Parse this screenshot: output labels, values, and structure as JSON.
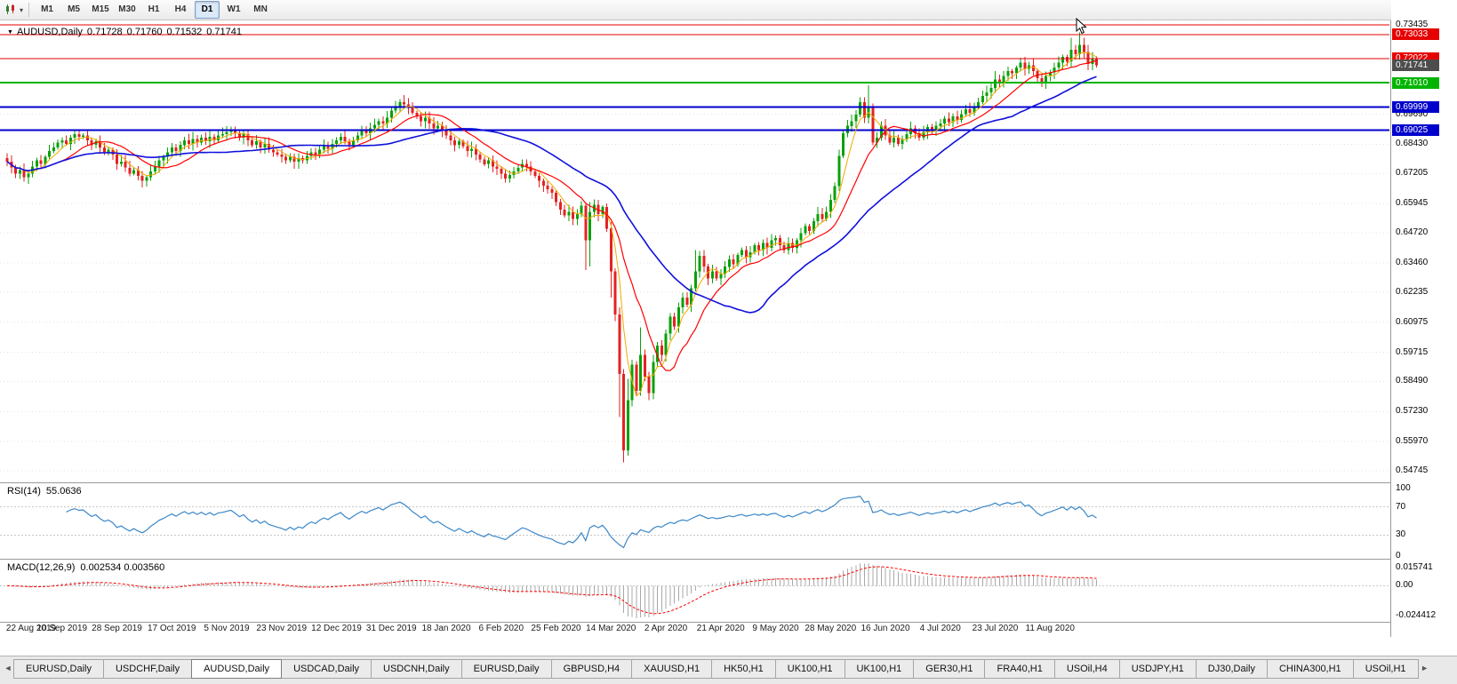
{
  "toolbar": {
    "timeframes": [
      {
        "label": "M1",
        "active": false
      },
      {
        "label": "M5",
        "active": false
      },
      {
        "label": "M15",
        "active": false
      },
      {
        "label": "M30",
        "active": false
      },
      {
        "label": "H1",
        "active": false
      },
      {
        "label": "H4",
        "active": false
      },
      {
        "label": "D1",
        "active": true
      },
      {
        "label": "W1",
        "active": false
      },
      {
        "label": "MN",
        "active": false
      }
    ]
  },
  "header": {
    "symbol": "AUDUSD,Daily",
    "open": "0.71728",
    "high": "0.71760",
    "low": "0.71532",
    "close": "0.71741"
  },
  "rsi_panel": {
    "name": "RSI(14)",
    "value": "55.0636",
    "scale": [
      {
        "label": "100",
        "v": 100
      },
      {
        "label": "70",
        "v": 70
      },
      {
        "label": "30",
        "v": 30
      },
      {
        "label": "0",
        "v": 0
      }
    ]
  },
  "macd_panel": {
    "name": "MACD(12,26,9)",
    "value": "0.002534 0.003560",
    "scale_top": "0.015741",
    "scale_zero": "0.00",
    "scale_bottom": "-0.024412"
  },
  "tabs": {
    "items": [
      {
        "label": "EURUSD,Daily",
        "active": false
      },
      {
        "label": "USDCHF,Daily",
        "active": false
      },
      {
        "label": "AUDUSD,Daily",
        "active": true
      },
      {
        "label": "USDCAD,Daily",
        "active": false
      },
      {
        "label": "USDCNH,Daily",
        "active": false
      },
      {
        "label": "EURUSD,Daily",
        "active": false
      },
      {
        "label": "GBPUSD,H4",
        "active": false
      },
      {
        "label": "XAUUSD,H1",
        "active": false
      },
      {
        "label": "HK50,H1",
        "active": false
      },
      {
        "label": "UK100,H1",
        "active": false
      },
      {
        "label": "UK100,H1",
        "active": false
      },
      {
        "label": "GER30,H1",
        "active": false
      },
      {
        "label": "FRA40,H1",
        "active": false
      },
      {
        "label": "USOil,H4",
        "active": false
      },
      {
        "label": "USDJPY,H1",
        "active": false
      },
      {
        "label": "DJ30,Daily",
        "active": false
      },
      {
        "label": "CHINA300,H1",
        "active": false
      },
      {
        "label": "USOil,H1",
        "active": false
      }
    ]
  },
  "chart_data": {
    "type": "candlestick",
    "symbol": "AUDUSD",
    "timeframe": "Daily",
    "price_max": 0.73435,
    "price_min": 0.54745,
    "first_open": 0.6785,
    "wick_seed": 42,
    "closes": [
      0.677,
      0.6745,
      0.672,
      0.6735,
      0.6705,
      0.672,
      0.675,
      0.6775,
      0.676,
      0.679,
      0.6815,
      0.683,
      0.685,
      0.686,
      0.6845,
      0.687,
      0.6885,
      0.6875,
      0.688,
      0.686,
      0.684,
      0.6855,
      0.683,
      0.681,
      0.682,
      0.68,
      0.676,
      0.677,
      0.6745,
      0.672,
      0.6735,
      0.671,
      0.669,
      0.6705,
      0.673,
      0.675,
      0.6775,
      0.679,
      0.681,
      0.683,
      0.6815,
      0.684,
      0.686,
      0.6845,
      0.6865,
      0.685,
      0.687,
      0.6855,
      0.6875,
      0.686,
      0.688,
      0.6885,
      0.6895,
      0.6905,
      0.689,
      0.687,
      0.6885,
      0.686,
      0.684,
      0.6855,
      0.683,
      0.6845,
      0.682,
      0.681,
      0.68,
      0.679,
      0.6775,
      0.679,
      0.677,
      0.6785,
      0.6775,
      0.6795,
      0.681,
      0.68,
      0.682,
      0.6835,
      0.6825,
      0.6845,
      0.686,
      0.6875,
      0.6855,
      0.684,
      0.686,
      0.688,
      0.69,
      0.689,
      0.691,
      0.6925,
      0.694,
      0.693,
      0.6955,
      0.6985,
      0.7,
      0.702,
      0.701,
      0.6995,
      0.6975,
      0.696,
      0.694,
      0.6955,
      0.693,
      0.691,
      0.692,
      0.69,
      0.688,
      0.686,
      0.684,
      0.6855,
      0.6835,
      0.6815,
      0.6825,
      0.68,
      0.678,
      0.676,
      0.6775,
      0.675,
      0.674,
      0.672,
      0.67,
      0.6715,
      0.673,
      0.6745,
      0.676,
      0.675,
      0.673,
      0.671,
      0.669,
      0.667,
      0.6655,
      0.664,
      0.66,
      0.657,
      0.6545,
      0.656,
      0.653,
      0.655,
      0.6585,
      0.644,
      0.656,
      0.659,
      0.655,
      0.658,
      0.649,
      0.631,
      0.613,
      0.588,
      0.556,
      0.577,
      0.592,
      0.581,
      0.596,
      0.587,
      0.58,
      0.593,
      0.6,
      0.596,
      0.605,
      0.612,
      0.608,
      0.616,
      0.62,
      0.617,
      0.624,
      0.631,
      0.6375,
      0.633,
      0.628,
      0.631,
      0.628,
      0.63,
      0.633,
      0.636,
      0.634,
      0.638,
      0.64,
      0.637,
      0.639,
      0.642,
      0.64,
      0.643,
      0.641,
      0.644,
      0.645,
      0.642,
      0.64,
      0.643,
      0.641,
      0.644,
      0.647,
      0.65,
      0.648,
      0.652,
      0.655,
      0.653,
      0.656,
      0.661,
      0.6667,
      0.6795,
      0.689,
      0.692,
      0.694,
      0.6968,
      0.7019,
      0.6955,
      0.7,
      0.685,
      0.687,
      0.692,
      0.688,
      0.685,
      0.687,
      0.6845,
      0.6865,
      0.6885,
      0.691,
      0.689,
      0.687,
      0.6895,
      0.6915,
      0.69,
      0.692,
      0.693,
      0.695,
      0.6935,
      0.696,
      0.6945,
      0.697,
      0.699,
      0.6975,
      0.7,
      0.702,
      0.7045,
      0.706,
      0.708,
      0.7115,
      0.71,
      0.713,
      0.715,
      0.714,
      0.7165,
      0.7185,
      0.716,
      0.7175,
      0.715,
      0.712,
      0.71,
      0.713,
      0.7145,
      0.7165,
      0.7185,
      0.721,
      0.719,
      0.724,
      0.722,
      0.726,
      0.723,
      0.718,
      0.72,
      0.71741
    ],
    "wick_overrides": {
      "93": {
        "high": 0.7032
      },
      "137": {
        "low": 0.6315
      },
      "138": {
        "low": 0.633,
        "high": 0.66
      },
      "143": {
        "low": 0.62
      },
      "145": {
        "low": 0.57
      },
      "146": {
        "low": 0.551,
        "high": 0.59
      },
      "147": {
        "high": 0.586
      },
      "150": {
        "high": 0.6075
      },
      "163": {
        "high": 0.64
      },
      "202": {
        "high": 0.704
      },
      "204": {
        "high": 0.709
      },
      "234": {
        "high": 0.715
      },
      "240": {
        "high": 0.7205
      },
      "252": {
        "high": 0.729
      },
      "254": {
        "high": 0.7312
      }
    },
    "price_ticks": [
      "0.73435",
      "0.69690",
      "0.68430",
      "0.67205",
      "0.65945",
      "0.64720",
      "0.63460",
      "0.62235",
      "0.60975",
      "0.59715",
      "0.58490",
      "0.57230",
      "0.55970",
      "0.54745"
    ],
    "price_lines": [
      {
        "price": 0.73435,
        "label": "",
        "color": "#e60000",
        "width": 1,
        "badge": false
      },
      {
        "price": 0.73033,
        "label": "0.73033",
        "color": "#e60000",
        "width": 1,
        "badge": true
      },
      {
        "price": 0.72022,
        "label": "0.72022",
        "color": "#e60000",
        "width": 1,
        "badge": true
      },
      {
        "price": 0.7101,
        "label": "0.71010",
        "color": "#00b400",
        "width": 2,
        "badge": true
      },
      {
        "price": 0.69999,
        "label": "0.69999",
        "color": "#0000cd",
        "width": 2,
        "badge": true
      },
      {
        "price": 0.69025,
        "label": "0.69025",
        "color": "#0000cd",
        "width": 2,
        "badge": true
      }
    ],
    "current_price": {
      "value": 0.71741,
      "label": "0.71741"
    },
    "moving_averages": [
      {
        "period": 5,
        "color": "#f2a900",
        "width": 1
      },
      {
        "period": 13,
        "color": "#ff0000",
        "width": 1.2
      },
      {
        "period": 34,
        "color": "#1111dd",
        "width": 1.6
      }
    ],
    "indicators": {
      "rsi_period": 14,
      "macd_fast": 12,
      "macd_slow": 26,
      "macd_signal": 9
    },
    "rsi_levels": [
      70,
      30
    ],
    "x_labels": [
      "22 Aug 2019",
      "10 Sep 2019",
      "28 Sep 2019",
      "17 Oct 2019",
      "5 Nov 2019",
      "23 Nov 2019",
      "12 Dec 2019",
      "31 Dec 2019",
      "18 Jan 2020",
      "6 Feb 2020",
      "25 Feb 2020",
      "14 Mar 2020",
      "2 Apr 2020",
      "21 Apr 2020",
      "9 May 2020",
      "28 May 2020",
      "16 Jun 2020",
      "4 Jul 2020",
      "23 Jul 2020",
      "11 Aug 2020"
    ],
    "colors": {
      "up": "#09a109",
      "down": "#e32222",
      "grid": "#e3e3e3",
      "rsi": "#3a87c8",
      "macd_hist": "#a8a8a8",
      "macd_signal": "#ff0000",
      "current_badge": "#4d4d4d"
    }
  }
}
